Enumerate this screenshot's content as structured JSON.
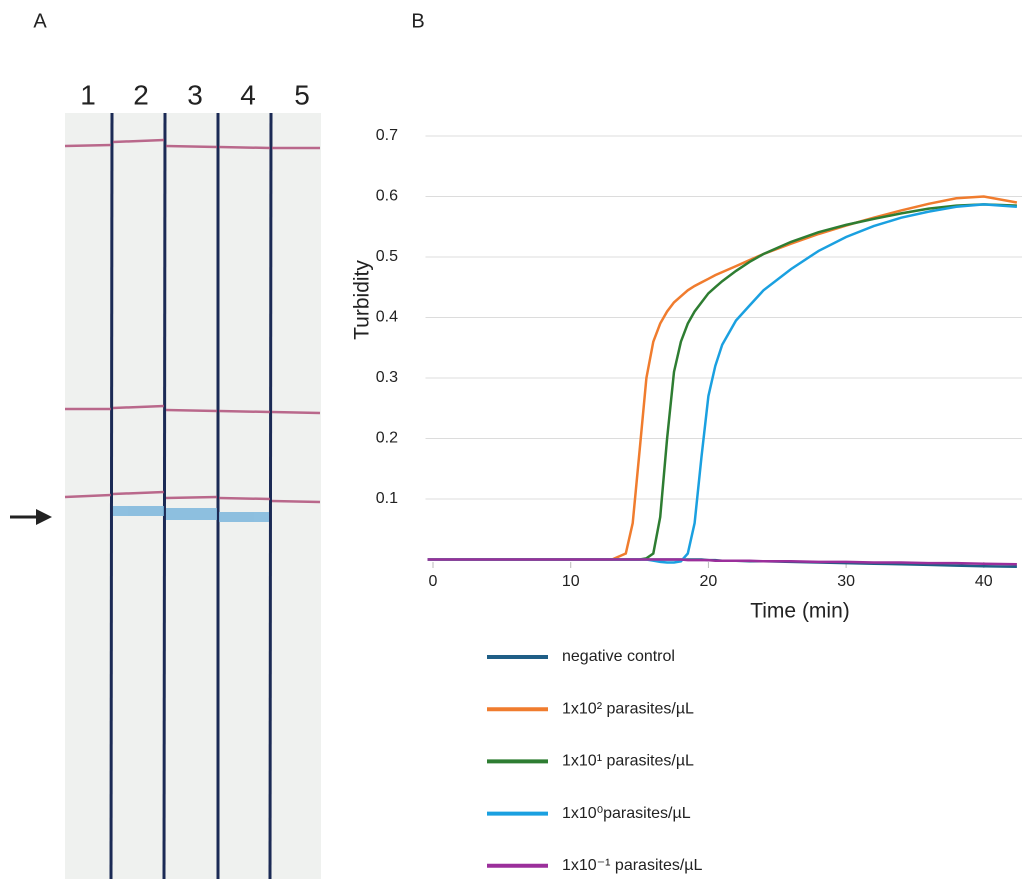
{
  "panel_a": {
    "label": "A",
    "lanes": [
      "1",
      "2",
      "3",
      "4",
      "5"
    ]
  },
  "chart_data": {
    "type": "line",
    "panel_label": "B",
    "x_label": "Time (min)",
    "y_label": "Turbidity",
    "x": [
      -0.4,
      5,
      10,
      13,
      14,
      14.5,
      15,
      15.5,
      16,
      16.5,
      17,
      17.5,
      18,
      18.5,
      19,
      19.5,
      20,
      20.5,
      21,
      22,
      23,
      24,
      26,
      28,
      30,
      32,
      34,
      36,
      38,
      40,
      42.4
    ],
    "series": [
      {
        "name": "negative control",
        "color": "#1f5e86",
        "values": [
          0,
          0,
          0,
          0,
          0,
          0,
          0,
          0,
          0,
          0,
          0,
          0,
          0,
          0,
          0,
          0,
          -0.001,
          -0.001,
          -0.002,
          -0.002,
          -0.003,
          -0.003,
          -0.004,
          -0.005,
          -0.006,
          -0.007,
          -0.008,
          -0.009,
          -0.01,
          -0.011,
          -0.012
        ]
      },
      {
        "name": "1x10² parasites/µL",
        "color": "#f07c2e",
        "values": [
          0,
          0,
          0,
          0,
          0.01,
          0.06,
          0.18,
          0.3,
          0.36,
          0.39,
          0.41,
          0.425,
          0.435,
          0.445,
          0.452,
          0.458,
          0.464,
          0.47,
          0.475,
          0.485,
          0.495,
          0.505,
          0.522,
          0.538,
          0.552,
          0.565,
          0.577,
          0.588,
          0.597,
          0.6,
          0.59
        ]
      },
      {
        "name": "1x10¹ parasites/µL",
        "color": "#2e7d32",
        "values": [
          0,
          0,
          0,
          0,
          0,
          0,
          0,
          0.002,
          0.01,
          0.07,
          0.2,
          0.31,
          0.36,
          0.39,
          0.41,
          0.425,
          0.44,
          0.45,
          0.46,
          0.477,
          0.492,
          0.505,
          0.525,
          0.541,
          0.553,
          0.563,
          0.572,
          0.58,
          0.585,
          0.587,
          0.585
        ]
      },
      {
        "name": "1x10⁰parasites/µL",
        "color": "#1aa0e0",
        "values": [
          0,
          0,
          0,
          0,
          0,
          0,
          0,
          0,
          -0.002,
          -0.004,
          -0.005,
          -0.005,
          -0.003,
          0.01,
          0.06,
          0.17,
          0.27,
          0.32,
          0.355,
          0.395,
          0.42,
          0.445,
          0.48,
          0.51,
          0.533,
          0.551,
          0.565,
          0.575,
          0.583,
          0.587,
          0.583
        ]
      },
      {
        "name": "1x10⁻¹ parasites/µL",
        "color": "#9b2f9b",
        "values": [
          0,
          0,
          0,
          0,
          0,
          0,
          0,
          0,
          0,
          0,
          0,
          0,
          0,
          -0.001,
          -0.001,
          -0.001,
          -0.001,
          -0.002,
          -0.002,
          -0.002,
          -0.002,
          -0.003,
          -0.003,
          -0.004,
          -0.004,
          -0.005,
          -0.005,
          -0.006,
          -0.006,
          -0.007,
          -0.008
        ]
      }
    ],
    "xlim": [
      -0.4,
      42.7
    ],
    "ylim": [
      -0.02,
      0.72
    ],
    "xticks": [
      0,
      10,
      20,
      30,
      40
    ],
    "yticks": [
      0.1,
      0.2,
      0.3,
      0.4,
      0.5,
      0.6,
      0.7
    ],
    "grid": true
  }
}
